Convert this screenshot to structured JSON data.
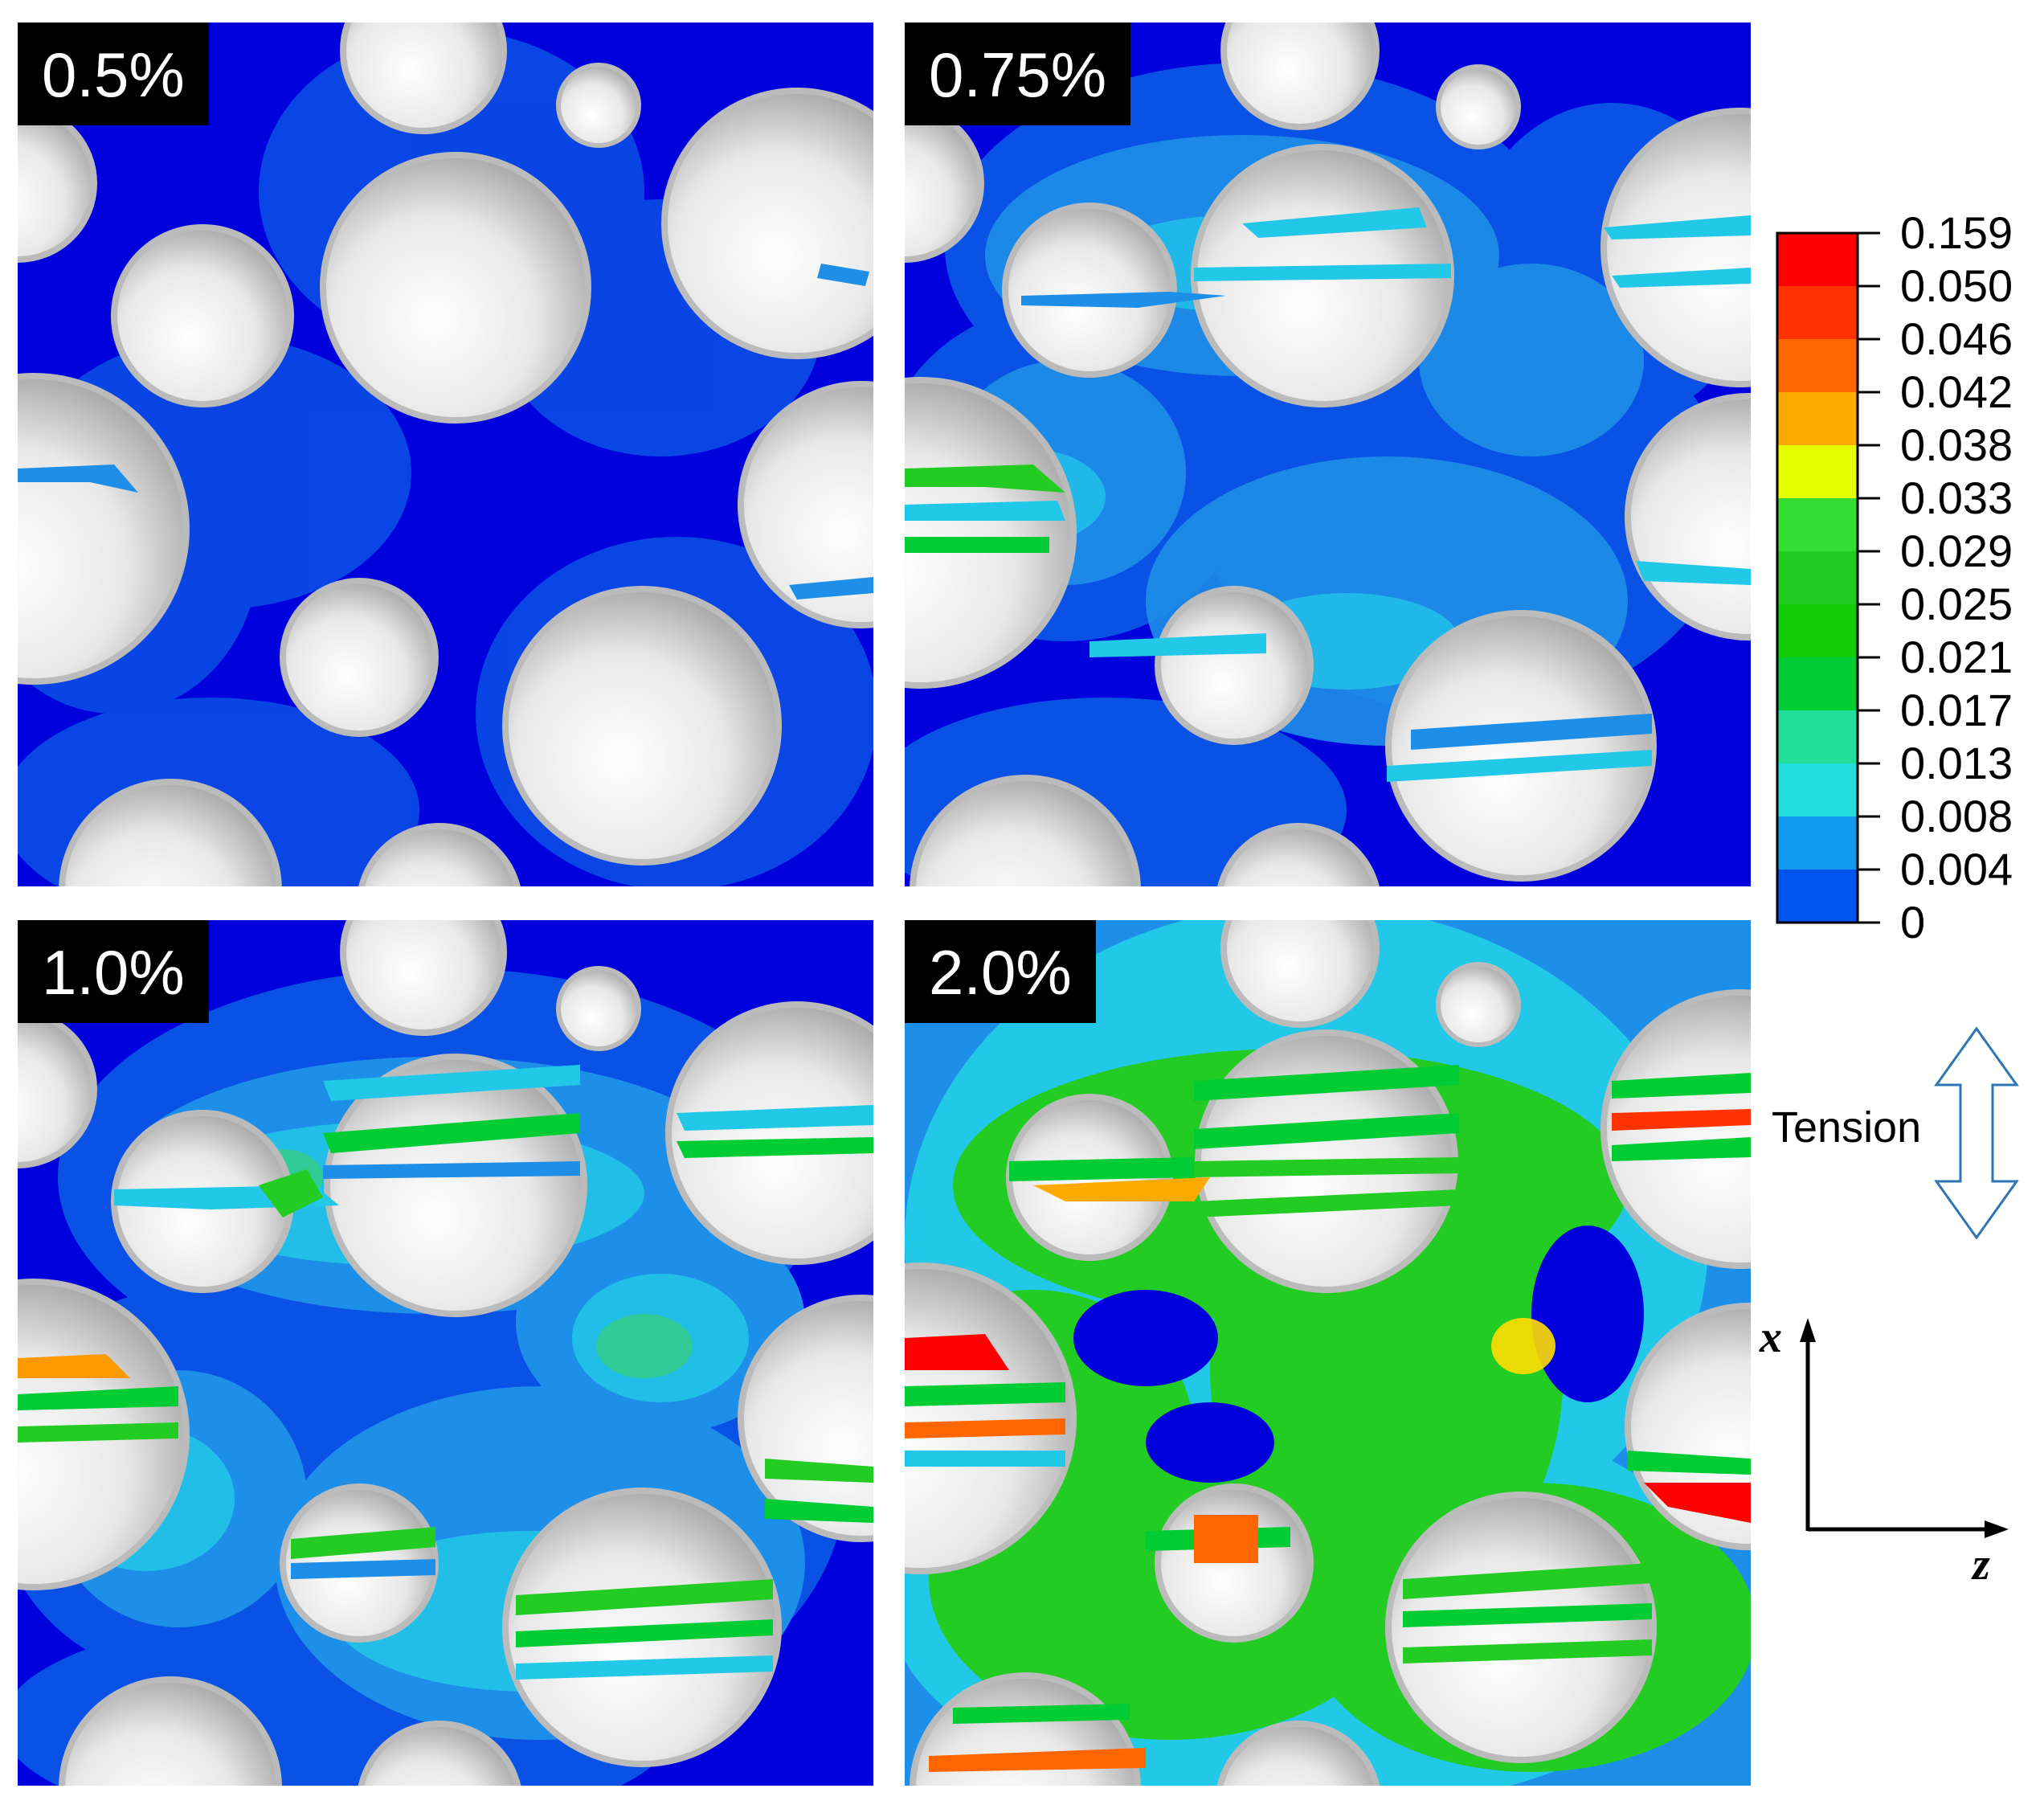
{
  "panels": [
    {
      "label": "0.5%"
    },
    {
      "label": "0.75%"
    },
    {
      "label": "1.0%"
    },
    {
      "label": "2.0%"
    }
  ],
  "colorbar": {
    "ticks": [
      "0.159",
      "0.050",
      "0.046",
      "0.042",
      "0.038",
      "0.033",
      "0.029",
      "0.025",
      "0.021",
      "0.017",
      "0.013",
      "0.008",
      "0.004",
      "0"
    ],
    "colors": [
      "#ff0000",
      "#ff3300",
      "#ff6600",
      "#ffaa00",
      "#e6ff00",
      "#33dd33",
      "#22cc22",
      "#11cc00",
      "#00cc33",
      "#22dd99",
      "#22dddd",
      "#1199ee",
      "#0055ee",
      "#0000dd"
    ]
  },
  "load": {
    "label": "Tension"
  },
  "axes": {
    "vertical": "x",
    "horizontal": "z"
  }
}
